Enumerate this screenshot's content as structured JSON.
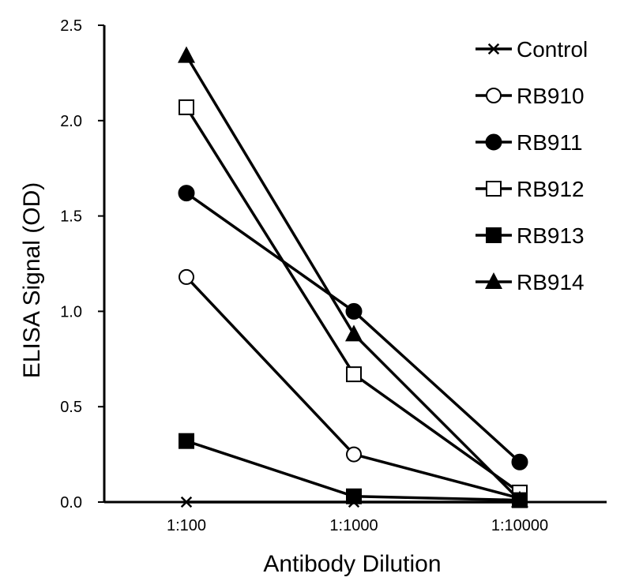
{
  "chart_data": {
    "type": "line",
    "title": "",
    "xlabel": "Antibody Dilution",
    "ylabel": "ELISA Signal (OD)",
    "categories": [
      "1:100",
      "1:1000",
      "1:10000"
    ],
    "ylim": [
      0,
      2.5
    ],
    "yticks": [
      "0.0",
      "0.5",
      "1.0",
      "1.5",
      "2.0",
      "2.5"
    ],
    "grid": false,
    "legend_position": "top-right",
    "series": [
      {
        "name": "Control",
        "marker": "asterisk",
        "values": [
          0.0,
          0.0,
          0.0
        ]
      },
      {
        "name": "RB910",
        "marker": "open-circle",
        "values": [
          1.18,
          0.25,
          0.02
        ]
      },
      {
        "name": "RB911",
        "marker": "filled-circle",
        "values": [
          1.62,
          1.0,
          0.21
        ]
      },
      {
        "name": "RB912",
        "marker": "open-square",
        "values": [
          2.07,
          0.67,
          0.05
        ]
      },
      {
        "name": "RB913",
        "marker": "filled-square",
        "values": [
          0.32,
          0.03,
          0.01
        ]
      },
      {
        "name": "RB914",
        "marker": "filled-triangle",
        "values": [
          2.34,
          0.88,
          0.01
        ]
      }
    ]
  }
}
